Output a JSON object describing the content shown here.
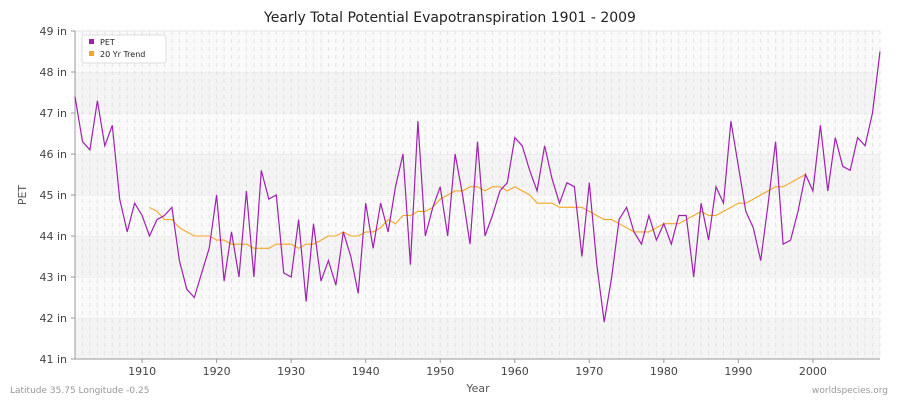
{
  "chart_data": {
    "type": "line",
    "title": "Yearly Total Potential Evapotranspiration 1901 - 2009",
    "xlabel": "Year",
    "ylabel": "PET",
    "ylim": [
      41,
      49
    ],
    "xlim": [
      1901,
      2009
    ],
    "y_ticks": [
      "41 in",
      "42 in",
      "43 in",
      "44 in",
      "45 in",
      "46 in",
      "47 in",
      "48 in",
      "49 in"
    ],
    "x_ticks": [
      "1910",
      "1920",
      "1930",
      "1940",
      "1950",
      "1960",
      "1970",
      "1980",
      "1990",
      "2000"
    ],
    "grid": true,
    "legend_position": "top-left",
    "series": [
      {
        "name": "PET",
        "color": "#a020b0",
        "x_start": 1901,
        "values": [
          47.4,
          46.3,
          46.1,
          47.3,
          46.2,
          46.7,
          44.9,
          44.1,
          44.8,
          44.5,
          44.0,
          44.4,
          44.5,
          44.7,
          43.4,
          42.7,
          42.5,
          43.1,
          43.7,
          45.0,
          42.9,
          44.1,
          43.0,
          45.1,
          43.0,
          45.6,
          44.9,
          45.0,
          43.1,
          43.0,
          44.4,
          42.4,
          44.3,
          42.9,
          43.4,
          42.8,
          44.1,
          43.5,
          42.6,
          44.8,
          43.7,
          44.8,
          44.1,
          45.2,
          46.0,
          43.3,
          46.8,
          44.0,
          44.7,
          45.2,
          44.0,
          46.0,
          45.0,
          43.8,
          46.3,
          44.0,
          44.5,
          45.1,
          45.3,
          46.4,
          46.2,
          45.6,
          45.1,
          46.2,
          45.4,
          44.8,
          45.3,
          45.2,
          43.5,
          45.3,
          43.3,
          41.9,
          43.0,
          44.4,
          44.7,
          44.1,
          43.8,
          44.5,
          43.9,
          44.3,
          43.8,
          44.5,
          44.5,
          43.0,
          44.8,
          43.9,
          45.2,
          44.8,
          46.8,
          45.7,
          44.6,
          44.2,
          43.4,
          44.8,
          46.3,
          43.8,
          43.9,
          44.6,
          45.5,
          45.1,
          46.7,
          45.1,
          46.4,
          45.7,
          45.6,
          46.4,
          46.2,
          47.0,
          48.5
        ]
      },
      {
        "name": "20 Yr Trend",
        "color": "#f5a623",
        "x_start": 1911,
        "values": [
          44.7,
          44.6,
          44.4,
          44.4,
          44.2,
          44.1,
          44.0,
          44.0,
          44.0,
          43.9,
          43.9,
          43.8,
          43.8,
          43.8,
          43.7,
          43.7,
          43.7,
          43.8,
          43.8,
          43.8,
          43.7,
          43.8,
          43.8,
          43.9,
          44.0,
          44.0,
          44.1,
          44.0,
          44.0,
          44.1,
          44.1,
          44.2,
          44.4,
          44.3,
          44.5,
          44.5,
          44.6,
          44.6,
          44.7,
          44.9,
          45.0,
          45.1,
          45.1,
          45.2,
          45.2,
          45.1,
          45.2,
          45.2,
          45.1,
          45.2,
          45.1,
          45.0,
          44.8,
          44.8,
          44.8,
          44.7,
          44.7,
          44.7,
          44.7,
          44.6,
          44.5,
          44.4,
          44.4,
          44.3,
          44.2,
          44.1,
          44.1,
          44.1,
          44.2,
          44.3,
          44.3,
          44.3,
          44.4,
          44.5,
          44.6,
          44.5,
          44.5,
          44.6,
          44.7,
          44.8,
          44.8,
          44.9,
          45.0,
          45.1,
          45.2,
          45.2,
          45.3,
          45.4,
          45.5
        ]
      }
    ]
  },
  "footer": {
    "location": "Latitude 35.75 Longitude -0.25",
    "source": "worldspecies.org"
  }
}
